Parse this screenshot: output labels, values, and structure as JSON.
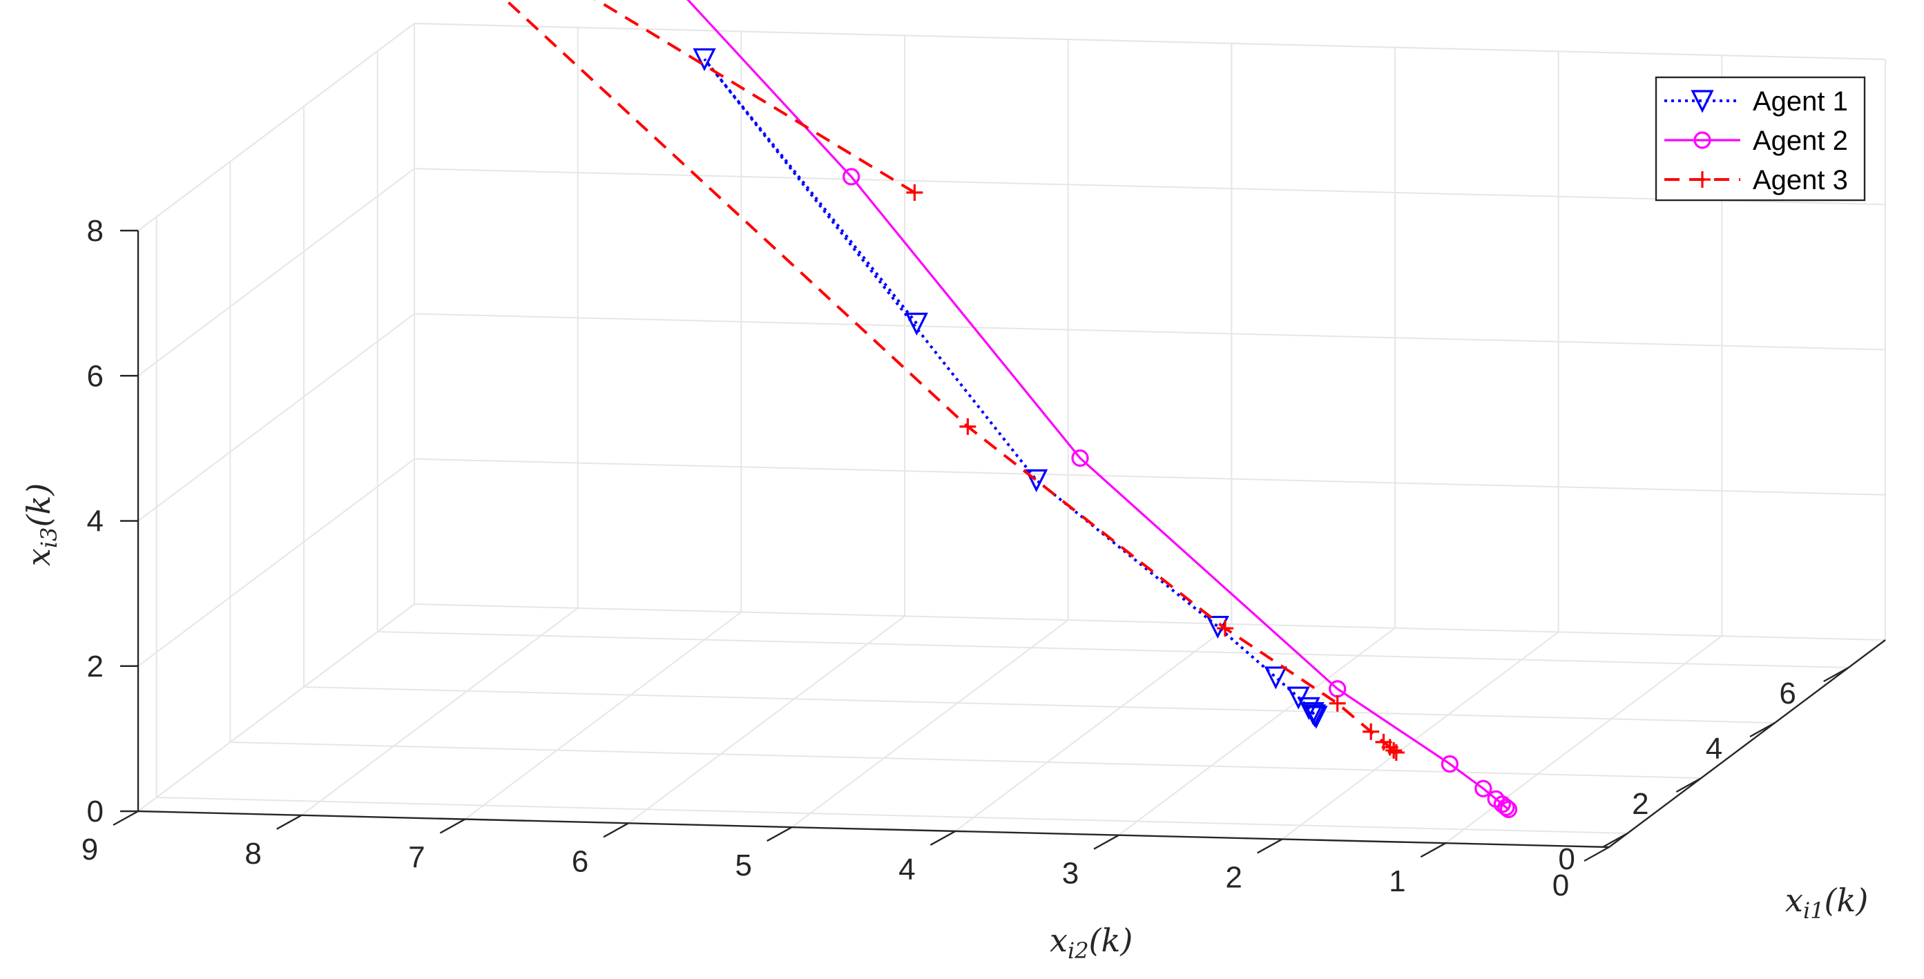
{
  "chart_data": {
    "type": "line3d",
    "title": "",
    "xlabel": {
      "main": "x",
      "sub": "i1",
      "arg": "(k)"
    },
    "ylabel": {
      "main": "x",
      "sub": "i2",
      "arg": "(k)"
    },
    "zlabel": {
      "main": "x",
      "sub": "i3",
      "arg": "(k)"
    },
    "xlim": [
      -0.5,
      7
    ],
    "ylim": [
      0,
      9
    ],
    "zlim": [
      0,
      8
    ],
    "xticks": [
      "0",
      "2",
      "4",
      "6"
    ],
    "yticks": [
      "9",
      "8",
      "7",
      "6",
      "5",
      "4",
      "3",
      "2",
      "1",
      "0"
    ],
    "zticks": [
      "0",
      "2",
      "4",
      "6",
      "8"
    ],
    "grid": true,
    "legend_position": "top-right",
    "series": [
      {
        "name": "Agent 1",
        "color": "#0000ff",
        "line": "dotted",
        "marker": "triangle-down",
        "points": [
          [
            2.0,
            4.8,
            6.0
          ],
          [
            6.0,
            7.0,
            8.0
          ],
          [
            1.7,
            4.0,
            4.0
          ],
          [
            1.3,
            2.8,
            2.2
          ],
          [
            1.1,
            2.4,
            1.6
          ],
          [
            1.05,
            2.25,
            1.35
          ],
          [
            1.02,
            2.18,
            1.22
          ],
          [
            1.0,
            2.15,
            1.16
          ],
          [
            1.0,
            2.14,
            1.13
          ],
          [
            1.0,
            2.13,
            1.11
          ]
        ]
      },
      {
        "name": "Agent 2",
        "color": "#ff00ff",
        "line": "solid",
        "marker": "circle",
        "points": [
          [
            7.0,
            8.2,
            10.5
          ],
          [
            2.0,
            5.2,
            8.0
          ],
          [
            2.0,
            3.8,
            4.2
          ],
          [
            1.0,
            2.0,
            1.5
          ],
          [
            0.5,
            1.2,
            0.7
          ],
          [
            0.3,
            0.95,
            0.45
          ],
          [
            0.2,
            0.85,
            0.35
          ],
          [
            0.15,
            0.8,
            0.3
          ],
          [
            0.12,
            0.77,
            0.27
          ],
          [
            0.1,
            0.75,
            0.25
          ]
        ]
      },
      {
        "name": "Agent 3",
        "color": "#ff0000",
        "line": "dashed",
        "marker": "plus",
        "points": [
          [
            1.5,
            4.7,
            8.0
          ],
          [
            7.0,
            9.5,
            10.5
          ],
          [
            2.5,
            4.6,
            4.4
          ],
          [
            1.5,
            2.8,
            2.1
          ],
          [
            1.0,
            2.0,
            1.3
          ],
          [
            0.8,
            1.75,
            1.0
          ],
          [
            0.7,
            1.65,
            0.9
          ],
          [
            0.65,
            1.6,
            0.85
          ],
          [
            0.62,
            1.57,
            0.82
          ],
          [
            0.6,
            1.55,
            0.8
          ]
        ]
      }
    ]
  }
}
